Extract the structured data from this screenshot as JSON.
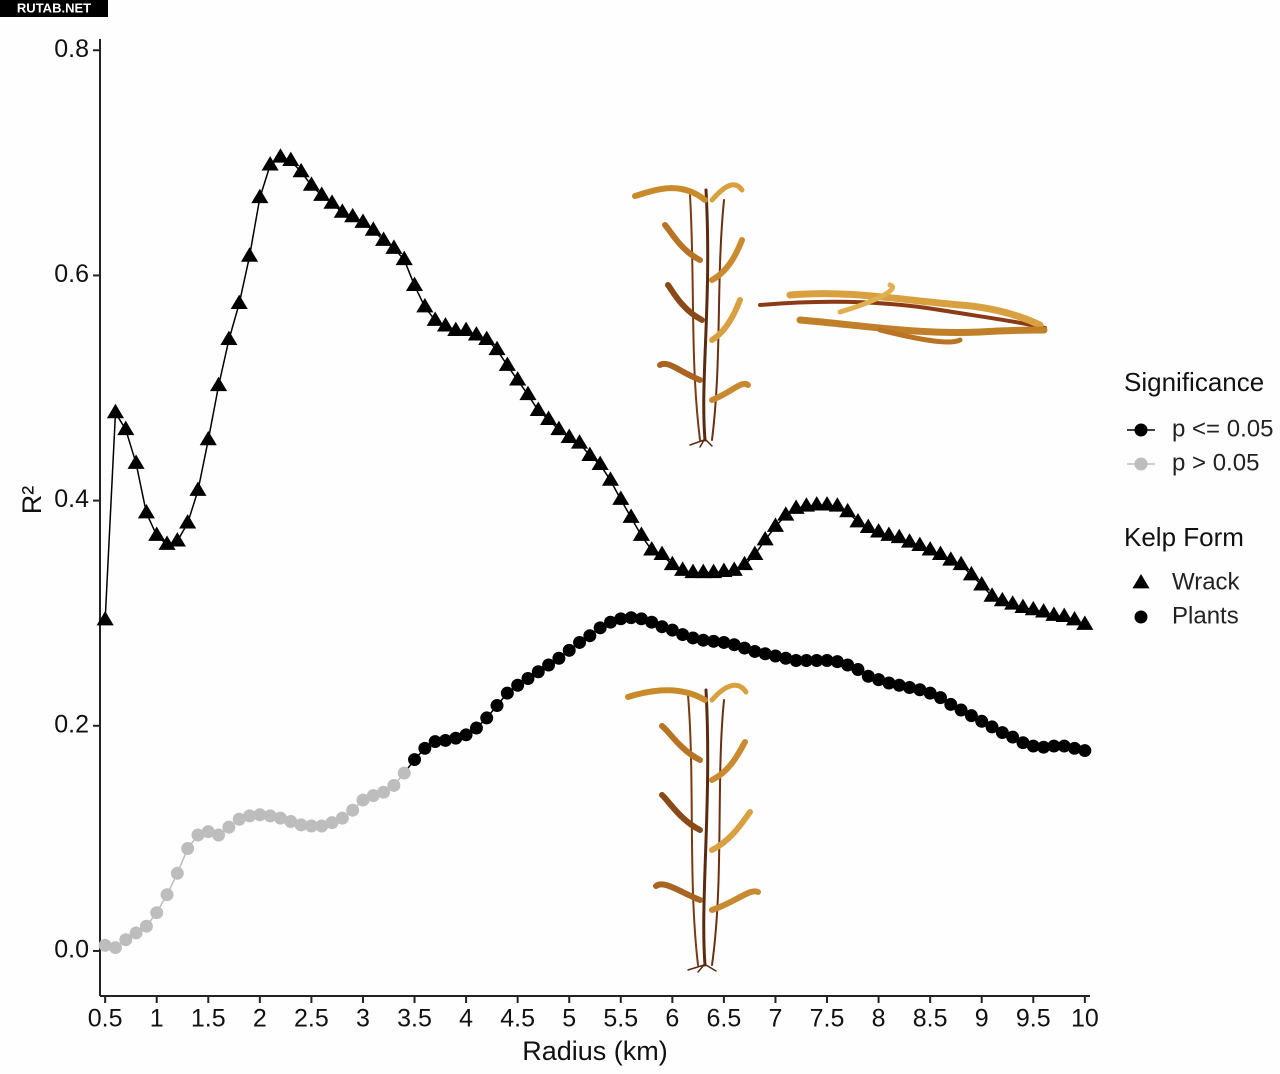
{
  "watermark": "RUTAB.NET",
  "chart_data": {
    "type": "line",
    "xlabel": "Radius (km)",
    "ylabel": "R²",
    "x": [
      0.5,
      0.6,
      0.7,
      0.8,
      0.9,
      1.0,
      1.1,
      1.2,
      1.3,
      1.4,
      1.5,
      1.6,
      1.7,
      1.8,
      1.9,
      2.0,
      2.1,
      2.2,
      2.3,
      2.4,
      2.5,
      2.6,
      2.7,
      2.8,
      2.9,
      3.0,
      3.1,
      3.2,
      3.3,
      3.4,
      3.5,
      3.6,
      3.7,
      3.8,
      3.9,
      4.0,
      4.1,
      4.2,
      4.3,
      4.4,
      4.5,
      4.6,
      4.7,
      4.8,
      4.9,
      5.0,
      5.1,
      5.2,
      5.3,
      5.4,
      5.5,
      5.6,
      5.7,
      5.8,
      5.9,
      6.0,
      6.1,
      6.2,
      6.3,
      6.4,
      6.5,
      6.6,
      6.7,
      6.8,
      6.9,
      7.0,
      7.1,
      7.2,
      7.3,
      7.4,
      7.5,
      7.6,
      7.7,
      7.8,
      7.9,
      8.0,
      8.1,
      8.2,
      8.3,
      8.4,
      8.5,
      8.6,
      8.7,
      8.8,
      8.9,
      9.0,
      9.1,
      9.2,
      9.3,
      9.4,
      9.5,
      9.6,
      9.7,
      9.8,
      9.9,
      10.0
    ],
    "significance_legend": {
      "title": "Significance",
      "levels": [
        {
          "label": "p <= 0.05",
          "color": "#000000"
        },
        {
          "label": "p > 0.05",
          "color": "#bdbdbd"
        }
      ]
    },
    "series_legend_title": "Kelp Form",
    "series": [
      {
        "name": "Wrack",
        "marker": "triangle",
        "values": [
          0.294,
          0.478,
          0.463,
          0.433,
          0.389,
          0.369,
          0.361,
          0.364,
          0.38,
          0.409,
          0.454,
          0.502,
          0.543,
          0.575,
          0.617,
          0.669,
          0.698,
          0.705,
          0.702,
          0.692,
          0.68,
          0.671,
          0.664,
          0.656,
          0.652,
          0.647,
          0.64,
          0.631,
          0.624,
          0.614,
          0.591,
          0.572,
          0.56,
          0.555,
          0.551,
          0.551,
          0.547,
          0.543,
          0.534,
          0.52,
          0.507,
          0.494,
          0.48,
          0.472,
          0.463,
          0.456,
          0.451,
          0.44,
          0.432,
          0.418,
          0.401,
          0.385,
          0.369,
          0.356,
          0.352,
          0.343,
          0.338,
          0.336,
          0.336,
          0.336,
          0.337,
          0.338,
          0.343,
          0.352,
          0.365,
          0.377,
          0.387,
          0.393,
          0.395,
          0.396,
          0.396,
          0.395,
          0.39,
          0.381,
          0.376,
          0.372,
          0.369,
          0.367,
          0.363,
          0.36,
          0.356,
          0.352,
          0.347,
          0.343,
          0.334,
          0.325,
          0.315,
          0.311,
          0.308,
          0.305,
          0.303,
          0.301,
          0.298,
          0.297,
          0.294,
          0.29
        ],
        "significance": [
          0,
          0,
          0,
          0,
          0,
          0,
          0,
          0,
          0,
          0,
          0,
          0,
          0,
          0,
          0,
          0,
          0,
          0,
          0,
          0,
          0,
          0,
          0,
          0,
          0,
          0,
          0,
          0,
          0,
          0,
          0,
          0,
          0,
          0,
          0,
          0,
          0,
          0,
          0,
          0,
          0,
          0,
          0,
          0,
          0,
          0,
          0,
          0,
          0,
          0,
          0,
          0,
          0,
          0,
          0,
          0,
          0,
          0,
          0,
          0,
          0,
          0,
          0,
          0,
          0,
          0,
          0,
          0,
          0,
          0,
          0,
          0,
          0,
          0,
          0,
          0,
          0,
          0,
          0,
          0,
          0,
          0,
          0,
          0,
          0,
          0,
          0,
          0,
          0,
          0,
          0,
          0,
          0,
          0,
          0,
          0
        ]
      },
      {
        "name": "Plants",
        "marker": "circle",
        "values": [
          0.005,
          0.003,
          0.01,
          0.016,
          0.022,
          0.034,
          0.05,
          0.069,
          0.091,
          0.103,
          0.106,
          0.103,
          0.11,
          0.117,
          0.12,
          0.121,
          0.12,
          0.118,
          0.115,
          0.112,
          0.111,
          0.111,
          0.114,
          0.118,
          0.125,
          0.134,
          0.138,
          0.141,
          0.147,
          0.158,
          0.17,
          0.18,
          0.186,
          0.187,
          0.189,
          0.192,
          0.198,
          0.207,
          0.218,
          0.229,
          0.236,
          0.242,
          0.248,
          0.254,
          0.26,
          0.267,
          0.274,
          0.28,
          0.287,
          0.292,
          0.295,
          0.296,
          0.295,
          0.292,
          0.288,
          0.285,
          0.281,
          0.278,
          0.276,
          0.275,
          0.274,
          0.272,
          0.269,
          0.266,
          0.264,
          0.262,
          0.26,
          0.258,
          0.258,
          0.258,
          0.258,
          0.257,
          0.254,
          0.25,
          0.244,
          0.241,
          0.238,
          0.236,
          0.234,
          0.232,
          0.229,
          0.225,
          0.219,
          0.214,
          0.209,
          0.204,
          0.199,
          0.194,
          0.19,
          0.185,
          0.182,
          0.181,
          0.182,
          0.182,
          0.18,
          0.178
        ],
        "significance": [
          1,
          1,
          1,
          1,
          1,
          1,
          1,
          1,
          1,
          1,
          1,
          1,
          1,
          1,
          1,
          1,
          1,
          1,
          1,
          1,
          1,
          1,
          1,
          1,
          1,
          1,
          1,
          1,
          1,
          1,
          0,
          0,
          0,
          0,
          0,
          0,
          0,
          0,
          0,
          0,
          0,
          0,
          0,
          0,
          0,
          0,
          0,
          0,
          0,
          0,
          0,
          0,
          0,
          0,
          0,
          0,
          0,
          0,
          0,
          0,
          0,
          0,
          0,
          0,
          0,
          0,
          0,
          0,
          0,
          0,
          0,
          0,
          0,
          0,
          0,
          0,
          0,
          0,
          0,
          0,
          0,
          0,
          0,
          0,
          0,
          0,
          0,
          0,
          0,
          0,
          0,
          0,
          0,
          0,
          0,
          0
        ]
      }
    ],
    "xlim": [
      0.45,
      10.05
    ],
    "ylim": [
      -0.04,
      0.81
    ],
    "xticks": [
      0.5,
      1,
      1.5,
      2,
      2.5,
      3,
      3.5,
      4,
      4.5,
      5,
      5.5,
      6,
      6.5,
      7,
      7.5,
      8,
      8.5,
      9,
      9.5,
      10
    ],
    "yticks": [
      {
        "value": 0,
        "label": "0.0"
      },
      0.2,
      0.4,
      0.6,
      0.8
    ],
    "grid": false
  }
}
